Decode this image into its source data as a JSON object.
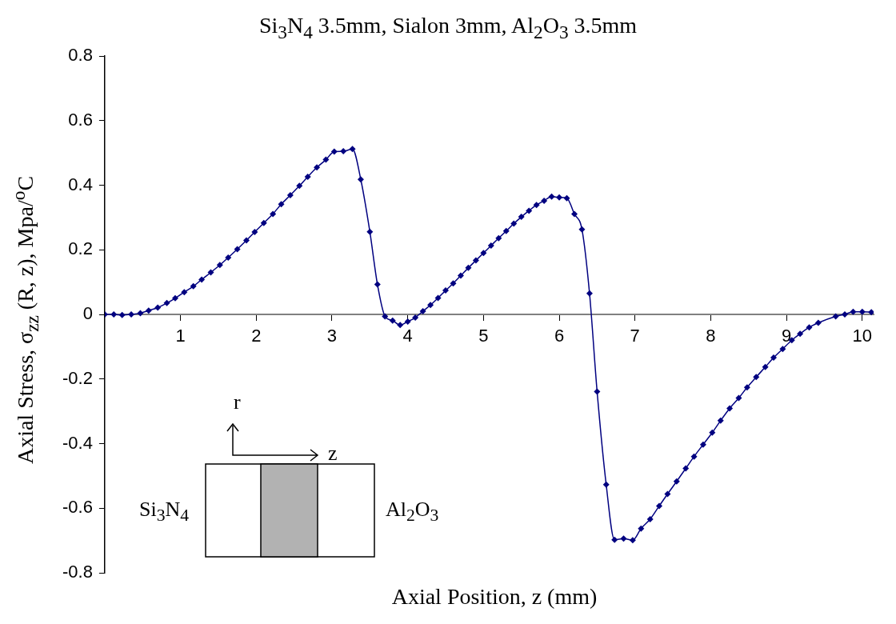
{
  "chart_data": {
    "type": "line",
    "title": "Si$_{3}$N$_{4}$ 3.5mm, Sialon 3mm, Al$_{2}$O$_{3}$ 3.5mm",
    "xlabel": "Axial Position, z (mm)",
    "ylabel": "Axial Stress, σ$_{zz}$ (R, z), Mpa/$^{o}$C",
    "annotations": [
      "r",
      "z",
      "Si$_{3}$N$_{4}$",
      "Al$_{2}$O$_{3}$"
    ],
    "series": [
      {
        "color": "#000080",
        "x": [
          0,
          0.12,
          0.23,
          0.35,
          0.47,
          0.58,
          0.7,
          0.82,
          0.93,
          1.05,
          1.17,
          1.28,
          1.4,
          1.52,
          1.63,
          1.75,
          1.87,
          1.98,
          2.1,
          2.22,
          2.33,
          2.45,
          2.57,
          2.68,
          2.8,
          2.92,
          3.03,
          3.15,
          3.27,
          3.38,
          3.5,
          3.6,
          3.7,
          3.8,
          3.9,
          4.0,
          4.1,
          4.2,
          4.3,
          4.4,
          4.5,
          4.6,
          4.7,
          4.8,
          4.9,
          5.0,
          5.1,
          5.2,
          5.3,
          5.4,
          5.5,
          5.6,
          5.7,
          5.8,
          5.9,
          6.0,
          6.1,
          6.2,
          6.3,
          6.4,
          6.5,
          6.62,
          6.73,
          6.85,
          6.97,
          7.08,
          7.2,
          7.32,
          7.43,
          7.55,
          7.67,
          7.78,
          7.9,
          8.02,
          8.13,
          8.25,
          8.37,
          8.48,
          8.6,
          8.72,
          8.83,
          8.95,
          9.07,
          9.18,
          9.3,
          9.42,
          9.65,
          9.77,
          9.88,
          10.0,
          10.12
        ],
        "values": [
          0,
          0,
          -0.002,
          0,
          0.004,
          0.012,
          0.021,
          0.035,
          0.05,
          0.069,
          0.087,
          0.108,
          0.13,
          0.153,
          0.176,
          0.202,
          0.229,
          0.255,
          0.283,
          0.311,
          0.341,
          0.369,
          0.398,
          0.426,
          0.455,
          0.479,
          0.504,
          0.505,
          0.512,
          0.418,
          0.256,
          0.093,
          -0.006,
          -0.019,
          -0.033,
          -0.022,
          -0.01,
          0.01,
          0.029,
          0.051,
          0.074,
          0.096,
          0.12,
          0.144,
          0.167,
          0.19,
          0.213,
          0.236,
          0.258,
          0.281,
          0.302,
          0.321,
          0.339,
          0.352,
          0.365,
          0.362,
          0.36,
          0.311,
          0.263,
          0.065,
          -0.239,
          -0.527,
          -0.698,
          -0.694,
          -0.699,
          -0.663,
          -0.634,
          -0.593,
          -0.556,
          -0.517,
          -0.477,
          -0.44,
          -0.403,
          -0.366,
          -0.329,
          -0.291,
          -0.259,
          -0.226,
          -0.194,
          -0.163,
          -0.134,
          -0.107,
          -0.08,
          -0.06,
          -0.04,
          -0.026,
          -0.006,
          0,
          0.008,
          0.008,
          0.007
        ]
      }
    ],
    "xlim": [
      0,
      10.15
    ],
    "xticks": [
      1,
      2,
      3,
      4,
      5,
      6,
      7,
      8,
      9,
      10
    ],
    "ylim": [
      -0.8,
      0.8
    ],
    "yticks": [
      -0.8,
      -0.6,
      -0.4,
      -0.2,
      0,
      0.2,
      0.4,
      0.6,
      0.8
    ],
    "grid": false,
    "legend": false,
    "marker": "diamond",
    "line_style": "solid"
  }
}
